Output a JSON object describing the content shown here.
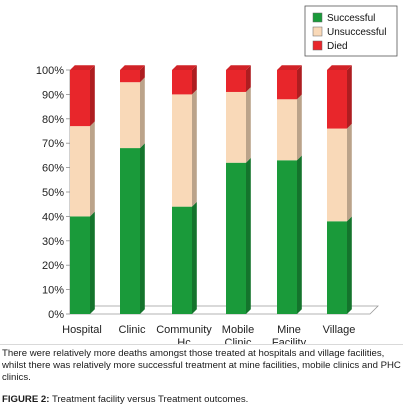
{
  "chart_data": {
    "type": "bar",
    "stacked": true,
    "percent": true,
    "three_d": true,
    "title": "",
    "xlabel": "",
    "ylabel": "",
    "ylim": [
      0,
      100
    ],
    "yticks": [
      "0%",
      "10%",
      "20%",
      "30%",
      "40%",
      "50%",
      "60%",
      "70%",
      "80%",
      "90%",
      "100%"
    ],
    "grid": false,
    "legend_position": "top-right",
    "categories": [
      [
        "Hospital"
      ],
      [
        "Clinic"
      ],
      [
        "Community",
        "Hc"
      ],
      [
        "Mobile",
        "Clinic"
      ],
      [
        "Mine",
        "Facility"
      ],
      [
        "Village"
      ]
    ],
    "series": [
      {
        "name": "Successful",
        "color": "#1a9a3a",
        "values": [
          40,
          68,
          44,
          62,
          63,
          38
        ]
      },
      {
        "name": "Unsuccessful",
        "color": "#f9d9b8",
        "values": [
          37,
          27,
          46,
          29,
          25,
          38
        ]
      },
      {
        "name": "Died",
        "color": "#e8262b",
        "values": [
          23,
          5,
          10,
          9,
          12,
          24
        ]
      }
    ]
  },
  "caption": {
    "text": "There were relatively more deaths amongst those treated at hospitals and village facilities, whilst there was relatively more successful treatment at mine facilities, mobile clinics and PHC clinics.",
    "figure_label": "FIGURE 2:",
    "figure_title": "Treatment facility versus Treatment outcomes."
  }
}
